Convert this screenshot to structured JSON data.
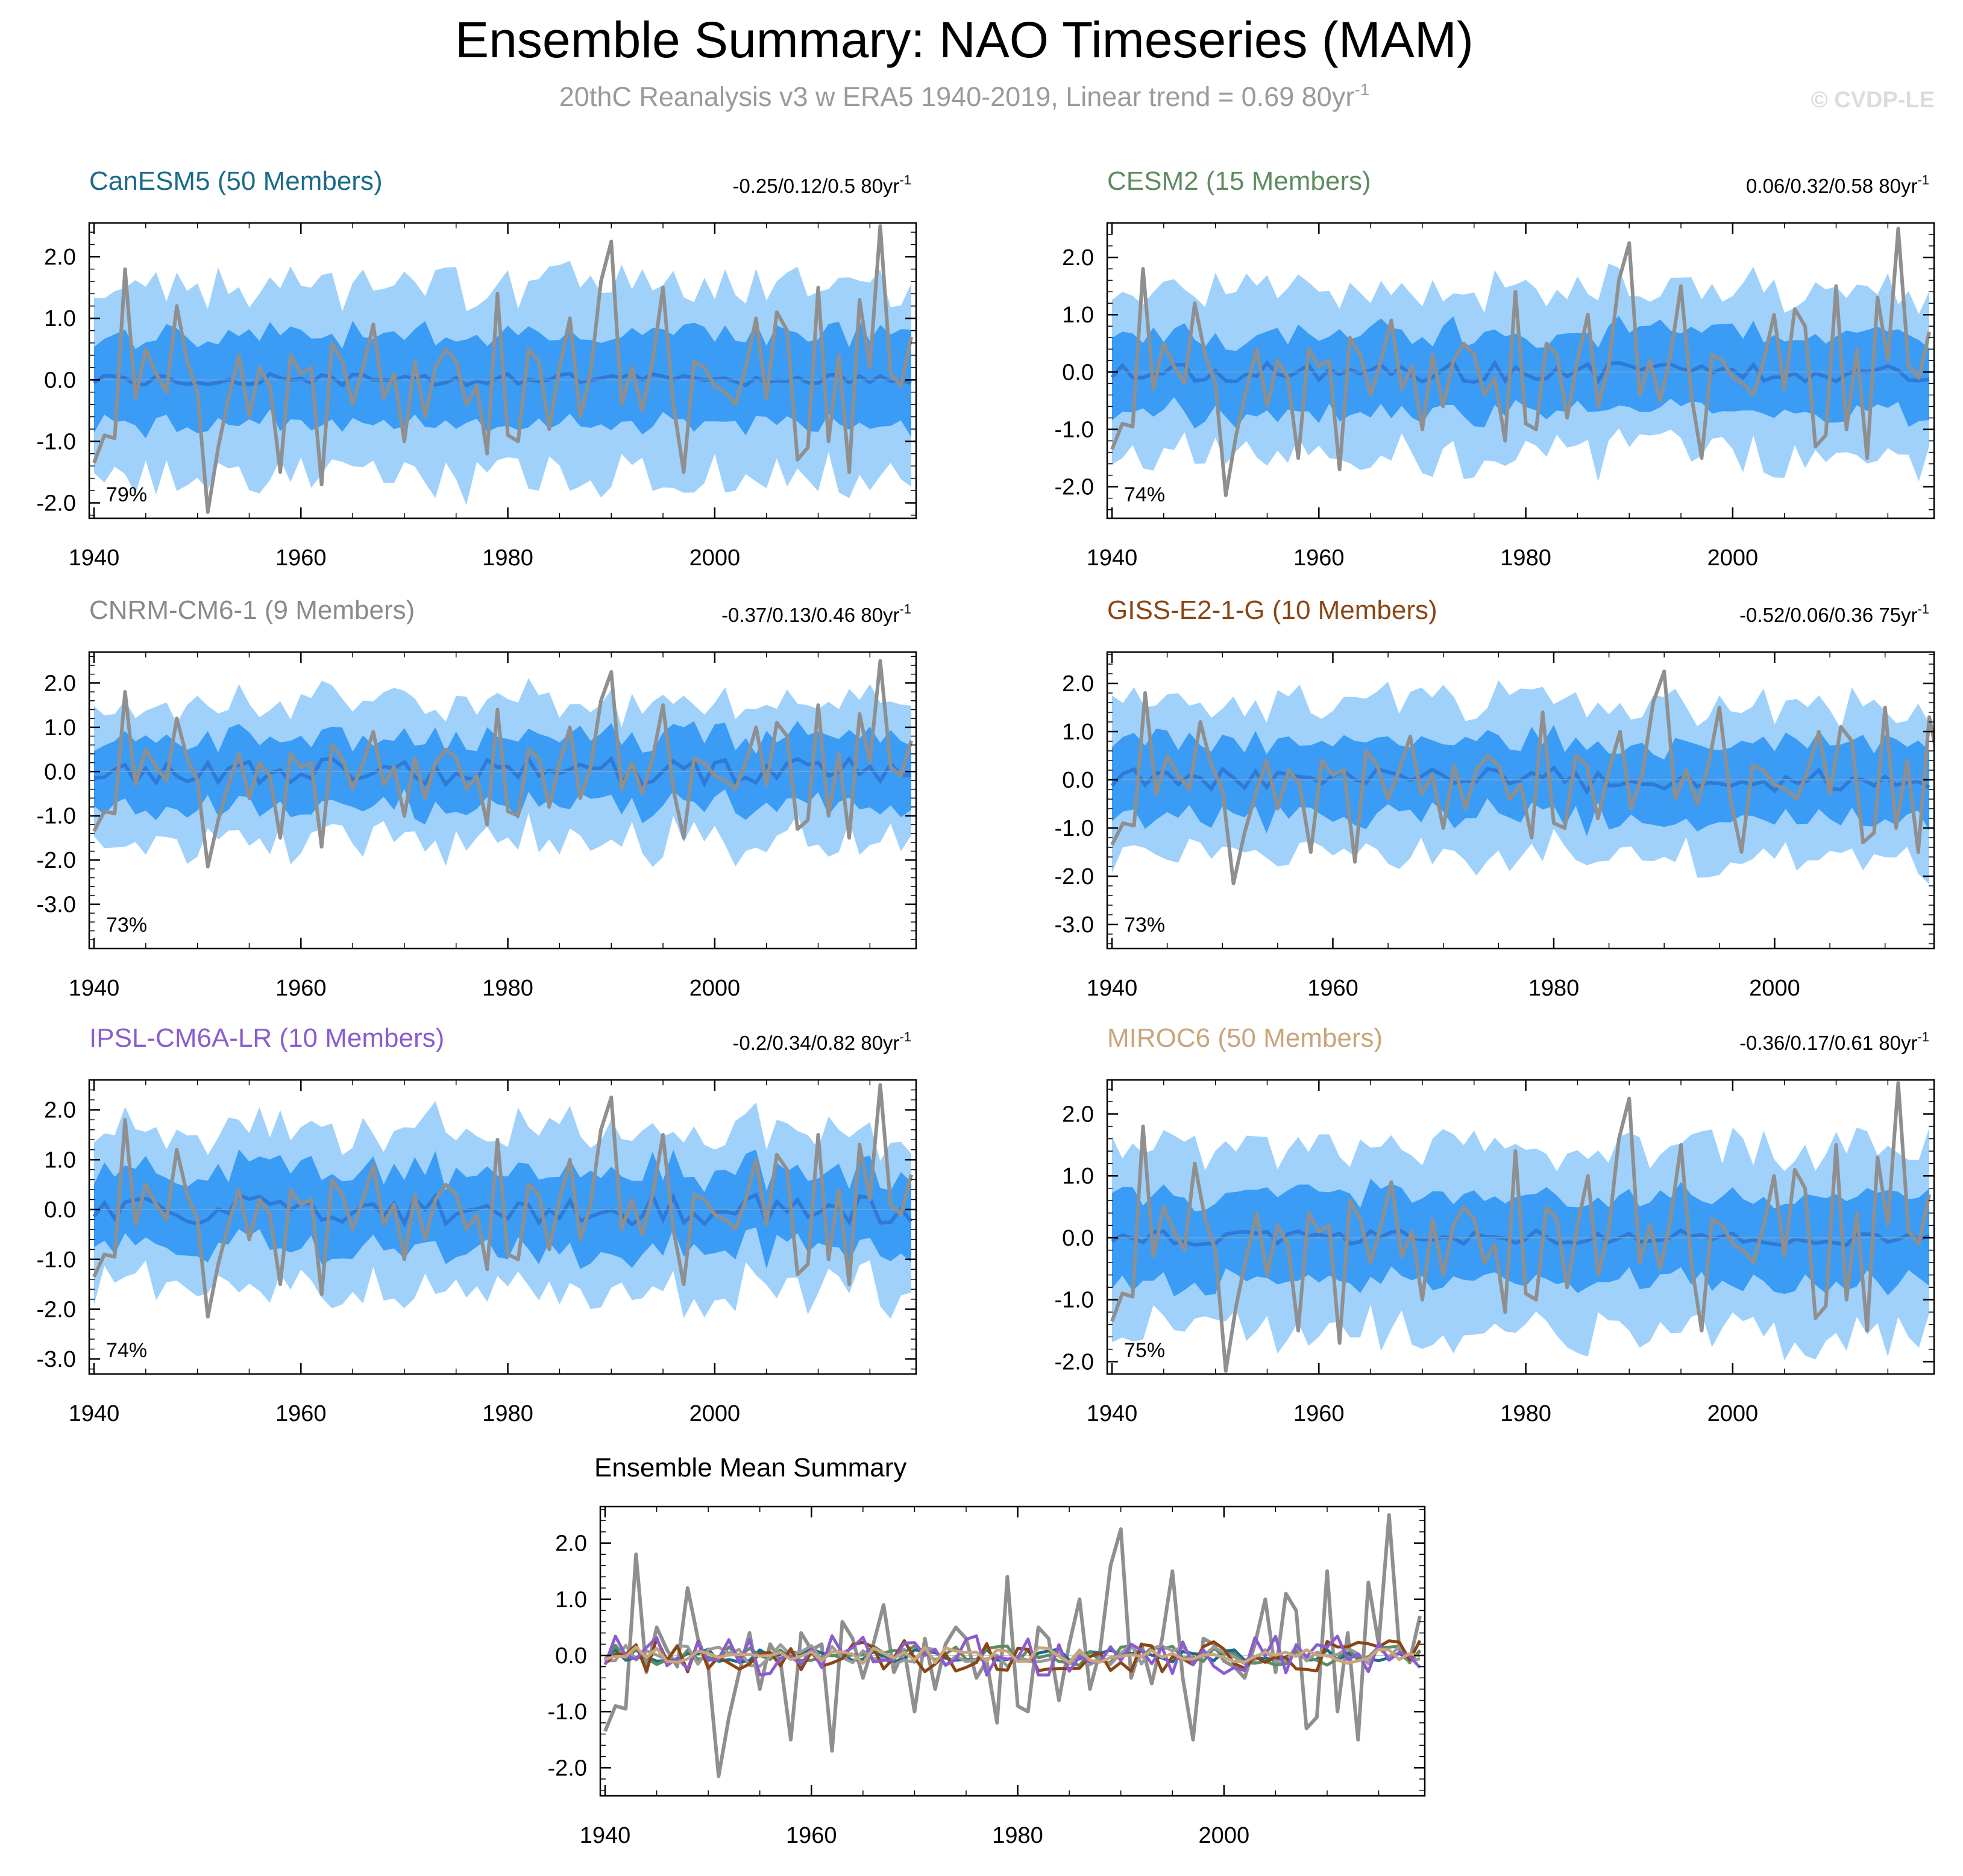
{
  "title": "Ensemble Summary: NAO Timeseries (MAM)",
  "subtitle": "20thC Reanalysis v3 w ERA5 1940-2019, Linear trend = 0.69 80yr",
  "subtitle_sup": "-1",
  "watermark": "© CVDP-LE",
  "colors": {
    "light_band": "#9fd1fb",
    "dark_band": "#3a9cf5",
    "model_mean": "#2f7ad6",
    "observations": "#8f8f8f"
  },
  "chart_data": [
    {
      "type": "area",
      "panel": "canesm5",
      "model_name": "CanESM5 (50 Members)",
      "name_color": "#1a6b8a",
      "trend_text": "-0.25/0.12/0.5 80yr",
      "trend_sup": "-1",
      "pct_text": "79%",
      "x_start": 1940,
      "x_end": 2019,
      "ylim": [
        -2.25,
        2.55
      ],
      "yticks": [
        2.0,
        1.0,
        0.0,
        -1.0,
        -2.0
      ],
      "ytick_labels": [
        "2.0",
        "1.0",
        "0.0",
        "-1.0",
        "-2.0"
      ],
      "xticks": [
        1940,
        1960,
        1980,
        2000
      ],
      "xtick_labels": [
        "1940",
        "1960",
        "1980",
        "2000"
      ],
      "light_amp": 1.5,
      "dark_amp": 0.75,
      "mean_amp": 0.1,
      "seed": 11
    },
    {
      "type": "area",
      "panel": "cesm2",
      "model_name": "CESM2 (15 Members)",
      "name_color": "#5e8c62",
      "trend_text": "0.06/0.32/0.58 80yr",
      "trend_sup": "-1",
      "pct_text": "74%",
      "x_start": 1940,
      "x_end": 2019,
      "ylim": [
        -2.55,
        2.6
      ],
      "yticks": [
        2.0,
        1.0,
        0.0,
        -1.0,
        -2.0
      ],
      "ytick_labels": [
        "2.0",
        "1.0",
        "0.0",
        "-1.0",
        "-2.0"
      ],
      "xticks": [
        1940,
        1960,
        1980,
        2000
      ],
      "xtick_labels": [
        "1940",
        "1960",
        "1980",
        "2000"
      ],
      "light_amp": 1.4,
      "dark_amp": 0.7,
      "mean_amp": 0.18,
      "seed": 23
    },
    {
      "type": "area",
      "panel": "cnrm",
      "model_name": "CNRM-CM6-1 (9 Members)",
      "name_color": "#8a8a8a",
      "trend_text": "-0.37/0.13/0.46 80yr",
      "trend_sup": "-1",
      "pct_text": "73%",
      "x_start": 1940,
      "x_end": 2019,
      "ylim": [
        -4.0,
        2.7
      ],
      "yticks": [
        2.0,
        1.0,
        0.0,
        -1.0,
        -2.0,
        -3.0
      ],
      "ytick_labels": [
        "2.0",
        "1.0",
        "0.0",
        "-1.0",
        "-2.0",
        "-3.0"
      ],
      "xticks": [
        1940,
        1960,
        1980,
        2000
      ],
      "xtick_labels": [
        "1940",
        "1960",
        "1980",
        "2000"
      ],
      "light_amp": 1.5,
      "dark_amp": 0.8,
      "mean_amp": 0.3,
      "seed": 37
    },
    {
      "type": "area",
      "panel": "giss",
      "model_name": "GISS-E2-1-G (10 Members)",
      "name_color": "#8b4513",
      "trend_text": "-0.52/0.06/0.36 75yr",
      "trend_sup": "-1",
      "pct_text": "73%",
      "x_start": 1940,
      "x_end": 2014,
      "ylim": [
        -3.5,
        2.65
      ],
      "yticks": [
        2.0,
        1.0,
        0.0,
        -1.0,
        -2.0,
        -3.0
      ],
      "ytick_labels": [
        "2.0",
        "1.0",
        "0.0",
        "-1.0",
        "-2.0",
        "-3.0"
      ],
      "xticks": [
        1940,
        1960,
        1980,
        2000
      ],
      "xtick_labels": [
        "1940",
        "1960",
        "1980",
        "2000"
      ],
      "light_amp": 1.55,
      "dark_amp": 0.8,
      "mean_amp": 0.25,
      "seed": 51
    },
    {
      "type": "area",
      "panel": "ipsl",
      "model_name": "IPSL-CM6A-LR (10 Members)",
      "name_color": "#8a5cd0",
      "trend_text": "-0.2/0.34/0.82 80yr",
      "trend_sup": "-1",
      "pct_text": "74%",
      "x_start": 1940,
      "x_end": 2019,
      "ylim": [
        -3.3,
        2.6
      ],
      "yticks": [
        2.0,
        1.0,
        0.0,
        -1.0,
        -2.0,
        -3.0
      ],
      "ytick_labels": [
        "2.0",
        "1.0",
        "0.0",
        "-1.0",
        "-2.0",
        "-3.0"
      ],
      "xticks": [
        1940,
        1960,
        1980,
        2000
      ],
      "xtick_labels": [
        "1940",
        "1960",
        "1980",
        "2000"
      ],
      "light_amp": 1.55,
      "dark_amp": 0.8,
      "mean_amp": 0.3,
      "seed": 67
    },
    {
      "type": "area",
      "panel": "miroc6",
      "model_name": "MIROC6 (50 Members)",
      "name_color": "#c9a57b",
      "trend_text": "-0.36/0.17/0.61 80yr",
      "trend_sup": "-1",
      "pct_text": "75%",
      "x_start": 1940,
      "x_end": 2019,
      "ylim": [
        -2.2,
        2.55
      ],
      "yticks": [
        2.0,
        1.0,
        0.0,
        -1.0,
        -2.0
      ],
      "ytick_labels": [
        "2.0",
        "1.0",
        "0.0",
        "-1.0",
        "-2.0"
      ],
      "xticks": [
        1940,
        1960,
        1980,
        2000
      ],
      "xtick_labels": [
        "1940",
        "1960",
        "1980",
        "2000"
      ],
      "light_amp": 1.45,
      "dark_amp": 0.72,
      "mean_amp": 0.12,
      "seed": 83
    },
    {
      "type": "line",
      "panel": "ensemble-mean",
      "model_name": "Ensemble Mean Summary",
      "name_color": "#000000",
      "x_start": 1940,
      "x_end": 2019,
      "ylim": [
        -2.5,
        2.65
      ],
      "yticks": [
        2.0,
        1.0,
        0.0,
        -1.0,
        -2.0
      ],
      "ytick_labels": [
        "2.0",
        "1.0",
        "0.0",
        "-1.0",
        "-2.0"
      ],
      "xticks": [
        1940,
        1960,
        1980,
        2000
      ],
      "xtick_labels": [
        "1940",
        "1960",
        "1980",
        "2000"
      ],
      "series": [
        {
          "name": "CanESM5",
          "color": "#1a6b8a",
          "amp": 0.12,
          "seed": 11
        },
        {
          "name": "CESM2",
          "color": "#5e8c62",
          "amp": 0.18,
          "seed": 23
        },
        {
          "name": "CNRM-CM6-1",
          "color": "#9a9a9a",
          "amp": 0.2,
          "seed": 37
        },
        {
          "name": "GISS-E2-1-G",
          "color": "#8b4513",
          "amp": 0.3,
          "seed": 51
        },
        {
          "name": "IPSL-CM6A-LR",
          "color": "#8a5cd0",
          "amp": 0.35,
          "seed": 67
        },
        {
          "name": "MIROC6",
          "color": "#c9a57b",
          "amp": 0.15,
          "seed": 83
        }
      ]
    }
  ],
  "observed_nao": {
    "name": "20thC Reanalysis v3 w ERA5",
    "years": [
      1940,
      1941,
      1942,
      1943,
      1944,
      1945,
      1946,
      1947,
      1948,
      1949,
      1950,
      1951,
      1952,
      1953,
      1954,
      1955,
      1956,
      1957,
      1958,
      1959,
      1960,
      1961,
      1962,
      1963,
      1964,
      1965,
      1966,
      1967,
      1968,
      1969,
      1970,
      1971,
      1972,
      1973,
      1974,
      1975,
      1976,
      1977,
      1978,
      1979,
      1980,
      1981,
      1982,
      1983,
      1984,
      1985,
      1986,
      1987,
      1988,
      1989,
      1990,
      1991,
      1992,
      1993,
      1994,
      1995,
      1996,
      1997,
      1998,
      1999,
      2000,
      2001,
      2002,
      2003,
      2004,
      2005,
      2006,
      2007,
      2008,
      2009,
      2010,
      2011,
      2012,
      2013,
      2014,
      2015,
      2016,
      2017,
      2018,
      2019
    ],
    "values": [
      -1.35,
      -0.9,
      -0.95,
      1.8,
      -0.3,
      0.5,
      0.1,
      -0.2,
      1.2,
      0.3,
      -0.2,
      -2.15,
      -1.1,
      -0.3,
      0.4,
      -0.6,
      0.2,
      -0.1,
      -1.5,
      0.4,
      0.1,
      0.2,
      -1.7,
      0.6,
      0.3,
      -0.4,
      0.2,
      0.9,
      -0.3,
      0.1,
      -1.0,
      0.3,
      -0.6,
      0.2,
      0.5,
      0.3,
      -0.4,
      -0.1,
      -1.2,
      1.4,
      -0.9,
      -1.0,
      0.5,
      0.3,
      -0.8,
      0.2,
      1.0,
      -0.6,
      0.1,
      1.6,
      2.25,
      -0.4,
      0.2,
      -0.5,
      0.3,
      1.5,
      -0.4,
      -1.5,
      0.3,
      0.2,
      -0.1,
      -0.2,
      -0.4,
      0.2,
      1.0,
      -0.3,
      1.1,
      0.8,
      -1.3,
      -1.1,
      1.5,
      -1.0,
      0.4,
      -1.5,
      1.3,
      0.2,
      2.5,
      0.1,
      -0.1,
      0.7
    ]
  }
}
